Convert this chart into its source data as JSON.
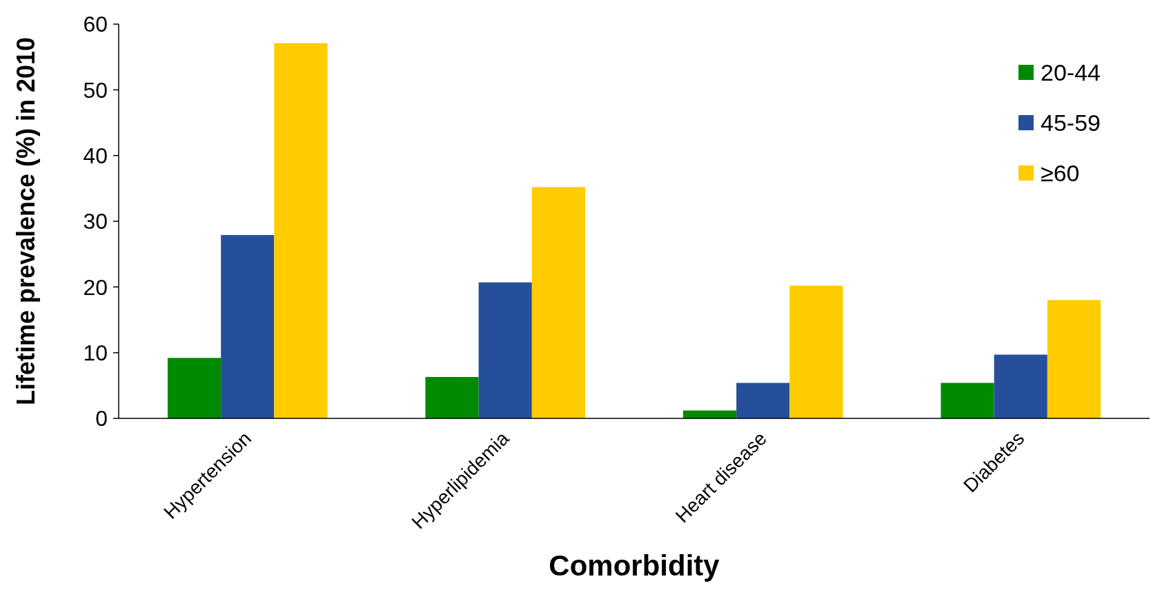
{
  "chart_data": {
    "type": "bar",
    "xlabel": "Comorbidity",
    "ylabel": "Lifetime prevalence (%) in 2010",
    "categories": [
      "Hypertension",
      "Hyperlipidemia",
      "Heart disease",
      "Diabetes"
    ],
    "series": [
      {
        "name": "20-44",
        "color": "#008a00",
        "values": [
          9.2,
          6.3,
          1.2,
          5.4
        ]
      },
      {
        "name": "45-59",
        "color": "#264f9b",
        "values": [
          27.9,
          20.7,
          5.4,
          9.7
        ]
      },
      {
        "name": "≥60",
        "color": "#ffcc00",
        "values": [
          57.1,
          35.2,
          20.2,
          18.0
        ]
      }
    ],
    "ylim": [
      0,
      60
    ],
    "yticks": [
      0,
      10,
      20,
      30,
      40,
      50,
      60
    ],
    "grid": false,
    "legend": "top right"
  }
}
